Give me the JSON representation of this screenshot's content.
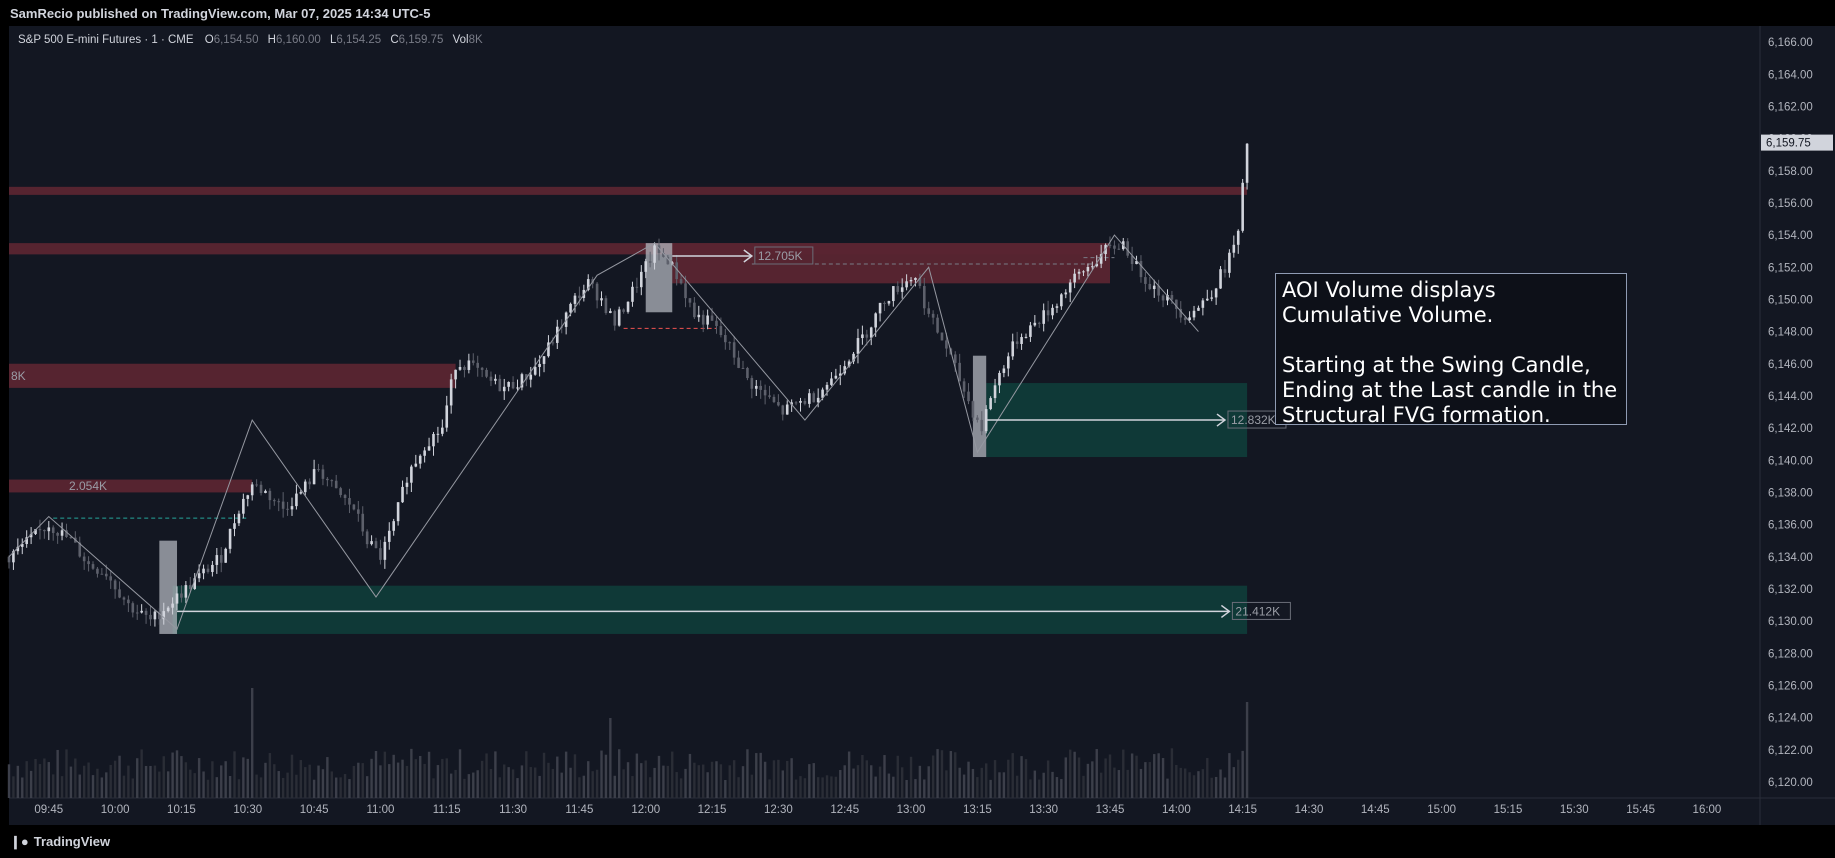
{
  "header": {
    "published": "SamRecio published on TradingView.com, Mar 07, 2025 14:34 UTC-5"
  },
  "legend": {
    "symbol": "S&P 500 E-mini Futures · 1 · CME",
    "o_label": "O",
    "o_value": "6,154.50",
    "h_label": "H",
    "h_value": "6,160.00",
    "l_label": "L",
    "l_value": "6,154.25",
    "c_label": "C",
    "c_value": "6,159.75",
    "vol_label": "Vol",
    "vol_value": "8K"
  },
  "annotation": {
    "line1": "AOI Volume displays Cumulative Volume.",
    "line2": "Starting at the Swing Candle, Ending at the Last candle in the Structural FVG formation."
  },
  "footer": {
    "brand": "TradingView"
  },
  "colors": {
    "background": "#131722",
    "bull": "#d1d4dc",
    "bear": "#5d606b",
    "bear_zone": "#5a2532",
    "bull_zone": "#0f3d3a",
    "grid": "#1e222d"
  },
  "chart_data": {
    "type": "candlestick",
    "symbol": "S&P 500 E-mini Futures",
    "interval": "1",
    "exchange": "CME",
    "ylim": [
      6119,
      6167
    ],
    "y_ticks": [
      "6,166.00",
      "6,164.00",
      "6,162.00",
      "6,160.00",
      "6,158.00",
      "6,156.00",
      "6,154.00",
      "6,152.00",
      "6,150.00",
      "6,148.00",
      "6,146.00",
      "6,144.00",
      "6,142.00",
      "6,140.00",
      "6,138.00",
      "6,136.00",
      "6,134.00",
      "6,132.00",
      "6,130.00",
      "6,128.00",
      "6,126.00",
      "6,124.00",
      "6,122.00",
      "6,120.00"
    ],
    "y_tick_values": [
      6166,
      6164,
      6162,
      6160,
      6158,
      6156,
      6154,
      6152,
      6150,
      6148,
      6146,
      6144,
      6142,
      6140,
      6138,
      6136,
      6134,
      6132,
      6130,
      6128,
      6126,
      6124,
      6122,
      6120
    ],
    "x_ticks": [
      "09:45",
      "10:00",
      "10:15",
      "10:30",
      "10:45",
      "11:00",
      "11:15",
      "11:30",
      "11:45",
      "12:00",
      "12:15",
      "12:30",
      "12:45",
      "13:00",
      "13:15",
      "13:30",
      "13:45",
      "14:00",
      "14:15",
      "14:30",
      "14:45",
      "15:00",
      "15:15",
      "15:30",
      "15:45",
      "16:00"
    ],
    "x_tick_minutes": [
      585,
      600,
      615,
      630,
      645,
      660,
      675,
      690,
      705,
      720,
      735,
      750,
      765,
      780,
      795,
      810,
      825,
      840,
      855,
      870,
      885,
      900,
      915,
      930,
      945,
      960
    ],
    "x_range_minutes": [
      576,
      972
    ],
    "last_price": "6,159.75",
    "last_price_value": 6159.75,
    "path_points": [
      [
        576,
        6134
      ],
      [
        585,
        6136
      ],
      [
        590,
        6135
      ],
      [
        594,
        6133.5
      ],
      [
        598,
        6133
      ],
      [
        603,
        6131
      ],
      [
        608,
        6130
      ],
      [
        612,
        6131
      ],
      [
        616,
        6132
      ],
      [
        620,
        6133
      ],
      [
        624,
        6134
      ],
      [
        628,
        6137
      ],
      [
        631,
        6138.5
      ],
      [
        634,
        6138
      ],
      [
        638,
        6137
      ],
      [
        642,
        6138
      ],
      [
        646,
        6139.5
      ],
      [
        650,
        6138
      ],
      [
        654,
        6137
      ],
      [
        657,
        6135
      ],
      [
        660,
        6134
      ],
      [
        663,
        6136
      ],
      [
        666,
        6139
      ],
      [
        670,
        6141
      ],
      [
        674,
        6142
      ],
      [
        677,
        6146
      ],
      [
        680,
        6146
      ],
      [
        684,
        6145
      ],
      [
        688,
        6144.5
      ],
      [
        692,
        6145
      ],
      [
        696,
        6146
      ],
      [
        700,
        6148
      ],
      [
        704,
        6150
      ],
      [
        707,
        6151
      ],
      [
        710,
        6150
      ],
      [
        713,
        6148.5
      ],
      [
        716,
        6150
      ],
      [
        719,
        6151.5
      ],
      [
        722,
        6153
      ],
      [
        725,
        6152.5
      ],
      [
        728,
        6151
      ],
      [
        731,
        6149
      ],
      [
        735,
        6148.5
      ],
      [
        739,
        6147
      ],
      [
        743,
        6145
      ],
      [
        747,
        6144
      ],
      [
        751,
        6143
      ],
      [
        754,
        6143.5
      ],
      [
        758,
        6144
      ],
      [
        762,
        6145
      ],
      [
        766,
        6146.5
      ],
      [
        770,
        6148
      ],
      [
        774,
        6150
      ],
      [
        778,
        6151
      ],
      [
        781,
        6151.5
      ],
      [
        784,
        6149
      ],
      [
        788,
        6147
      ],
      [
        791,
        6145
      ],
      [
        794,
        6143
      ],
      [
        796,
        6142
      ],
      [
        798,
        6144
      ],
      [
        801,
        6146
      ],
      [
        804,
        6147.5
      ],
      [
        808,
        6148.5
      ],
      [
        812,
        6149.5
      ],
      [
        816,
        6151
      ],
      [
        820,
        6152
      ],
      [
        824,
        6153
      ],
      [
        828,
        6153.5
      ],
      [
        831,
        6152
      ],
      [
        834,
        6151
      ],
      [
        838,
        6150
      ],
      [
        842,
        6149
      ],
      [
        845,
        6149.5
      ],
      [
        848,
        6150.5
      ],
      [
        851,
        6152
      ],
      [
        854,
        6154
      ],
      [
        856,
        6159.75
      ]
    ],
    "zigzag": [
      [
        576,
        6134
      ],
      [
        585,
        6136.5
      ],
      [
        614,
        6129.5
      ],
      [
        631,
        6142.5
      ],
      [
        659,
        6131.5
      ],
      [
        709,
        6151.5
      ],
      [
        722,
        6153.5
      ],
      [
        756,
        6142.5
      ],
      [
        784,
        6152
      ],
      [
        795,
        6140.5
      ],
      [
        826,
        6154
      ],
      [
        845,
        6148
      ]
    ],
    "volume": {
      "peak_minutes": [
        631,
        712,
        856
      ],
      "note": "volume histogram shown at bottom of pane, no scale printed"
    },
    "zones": [
      {
        "kind": "bear",
        "t0": 576,
        "t1": 856,
        "y_top": 6157,
        "y_bottom": 6156.5
      },
      {
        "kind": "bear",
        "t0": 576,
        "t1": 825,
        "y_top": 6153.5,
        "y_bottom": 6152.8
      },
      {
        "kind": "bear",
        "t0": 576,
        "t1": 677,
        "y_top": 6146,
        "y_bottom": 6144.5,
        "label": "8K"
      },
      {
        "kind": "bear",
        "t0": 576,
        "t1": 631,
        "y_top": 6138.8,
        "y_bottom": 6138,
        "label": "2.054K"
      },
      {
        "kind": "bear",
        "t0": 726,
        "t1": 825,
        "y_top": 6153.5,
        "y_bottom": 6151,
        "label": "12.705K"
      },
      {
        "kind": "bull",
        "t0": 613,
        "t1": 856,
        "y_top": 6132.2,
        "y_bottom": 6129.2,
        "label": "21.412K"
      },
      {
        "kind": "bull",
        "t0": 797,
        "t1": 856,
        "y_top": 6144.8,
        "y_bottom": 6140.2,
        "label": "12.832K"
      }
    ],
    "swing_boxes": [
      {
        "t0": 610,
        "t1": 614,
        "y_top": 6135,
        "y_bottom": 6129.2
      },
      {
        "t0": 720,
        "t1": 726,
        "y_top": 6153.5,
        "y_bottom": 6149.2
      },
      {
        "t0": 794,
        "t1": 797,
        "y_top": 6146.5,
        "y_bottom": 6140.2
      }
    ],
    "arrows": [
      {
        "t0": 614,
        "t1": 852,
        "y": 6130.6,
        "label": "21.412K"
      },
      {
        "t0": 726,
        "t1": 744,
        "y": 6152.7,
        "label": "12.705K"
      },
      {
        "t0": 797,
        "t1": 851,
        "y": 6142.5,
        "label": "12.832K"
      }
    ],
    "dashed_levels": [
      {
        "t0": 586,
        "t1": 630,
        "y": 6136.4,
        "color": "#26a69a"
      },
      {
        "t0": 715,
        "t1": 736,
        "y": 6148.2,
        "color": "#ef5350"
      },
      {
        "t0": 744,
        "t1": 821,
        "y": 6152.2,
        "color": "#787b86"
      },
      {
        "t0": 819,
        "t1": 826,
        "y": 6152.6,
        "color": "#787b86"
      }
    ]
  }
}
